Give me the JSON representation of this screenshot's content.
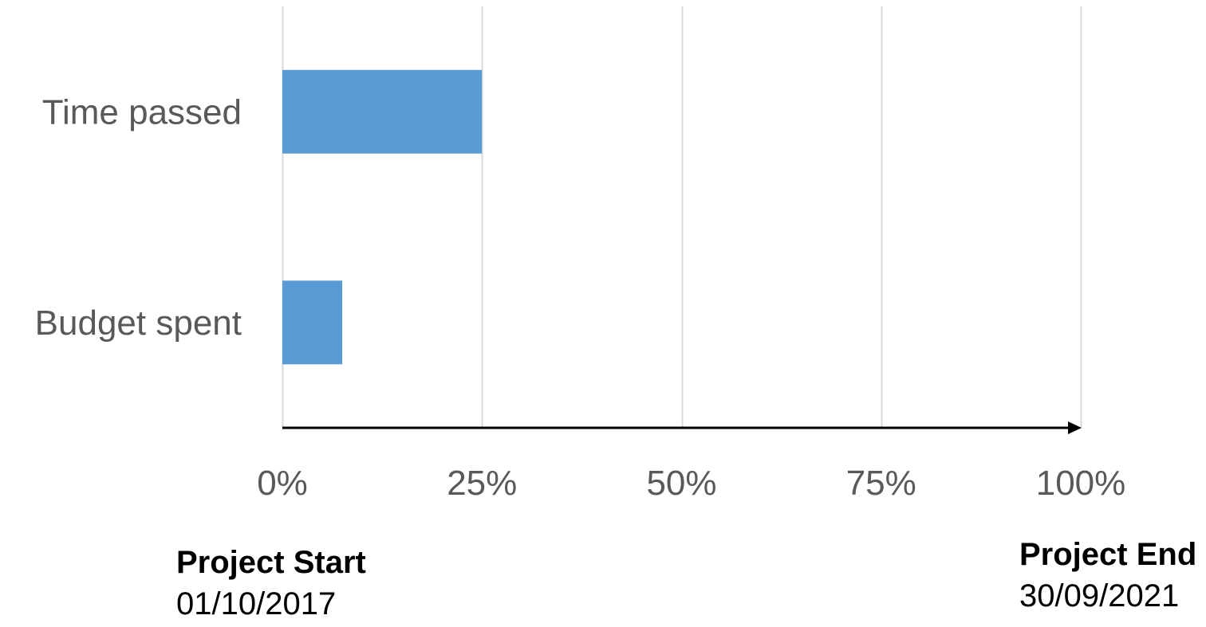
{
  "chart_data": {
    "type": "bar",
    "orientation": "horizontal",
    "categories": [
      "Time passed",
      "Budget spent"
    ],
    "values": [
      25,
      7.5
    ],
    "x_ticks": [
      "0%",
      "25%",
      "50%",
      "75%",
      "100%"
    ],
    "xlim": [
      0,
      100
    ],
    "grid": true,
    "bar_color": "#5B9BD5",
    "grid_color": "#D9D9D9",
    "axis_color": "#000000"
  },
  "annotations": {
    "start": {
      "title": "Project Start",
      "date": "01/10/2017"
    },
    "end": {
      "title": "Project End",
      "date": "30/09/2021"
    }
  }
}
